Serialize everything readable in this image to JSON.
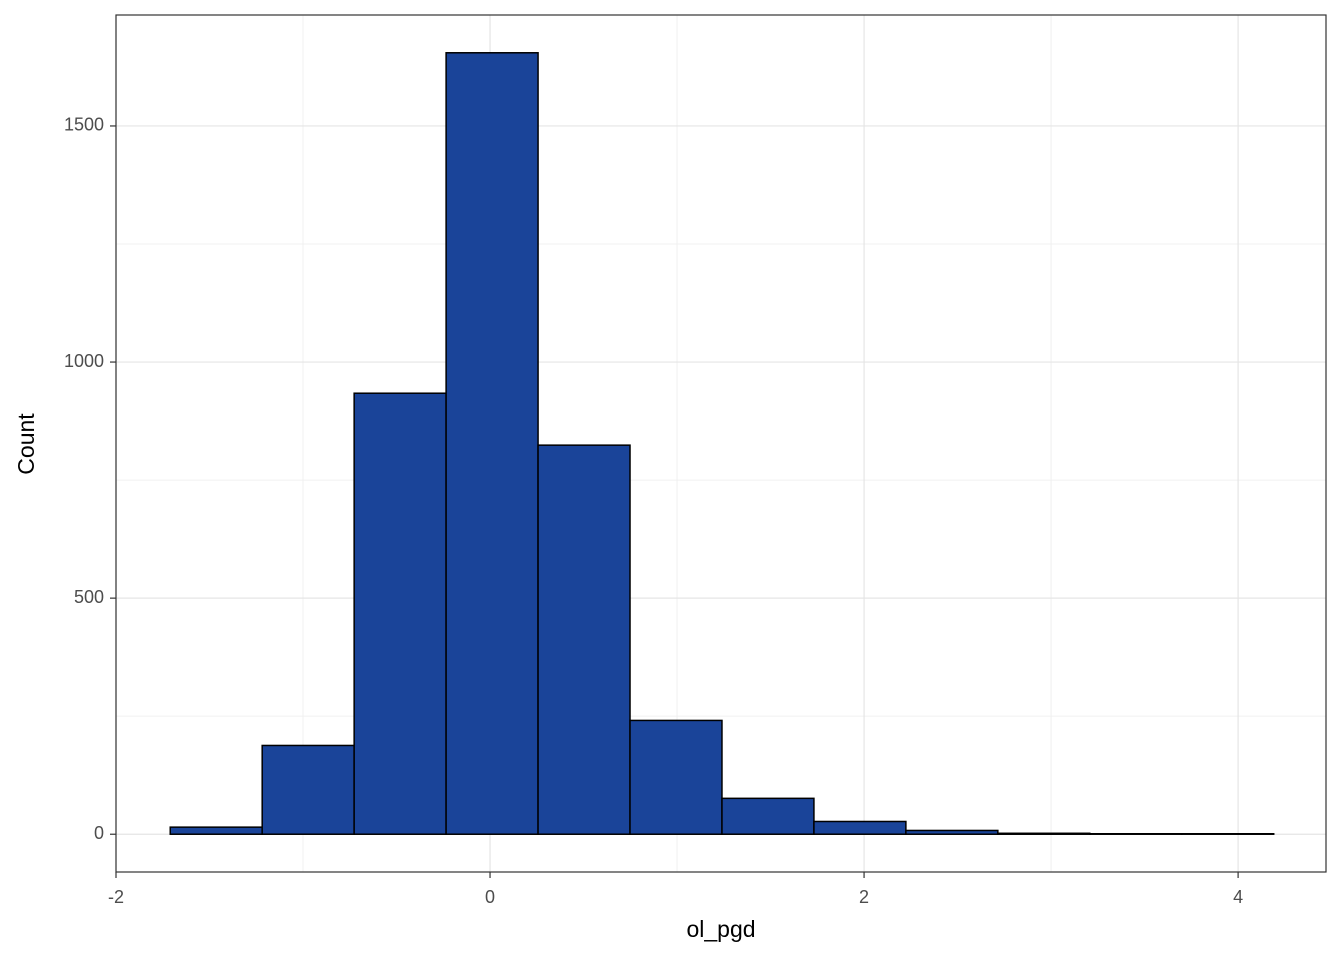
{
  "chart_data": {
    "type": "histogram",
    "x_label": "ol_pgd",
    "y_label": "Count",
    "bins": [
      -1.71,
      -1.2183,
      -0.7266,
      -0.2349,
      0.2568,
      0.7485,
      1.2402,
      1.7319,
      2.2236,
      2.7153,
      3.207,
      3.6987,
      4.1904
    ],
    "counts": [
      15,
      188,
      934,
      1655,
      824,
      241,
      76,
      27,
      8,
      2,
      1,
      1
    ],
    "color": "#1a4499",
    "edge_color": "#000000",
    "xlim": [
      -2,
      4.47
    ],
    "ylim": [
      -80,
      1735
    ],
    "xticks": [
      -2,
      0,
      2,
      4
    ],
    "yticks": [
      0,
      500,
      1000,
      1500
    ],
    "grid": true
  }
}
